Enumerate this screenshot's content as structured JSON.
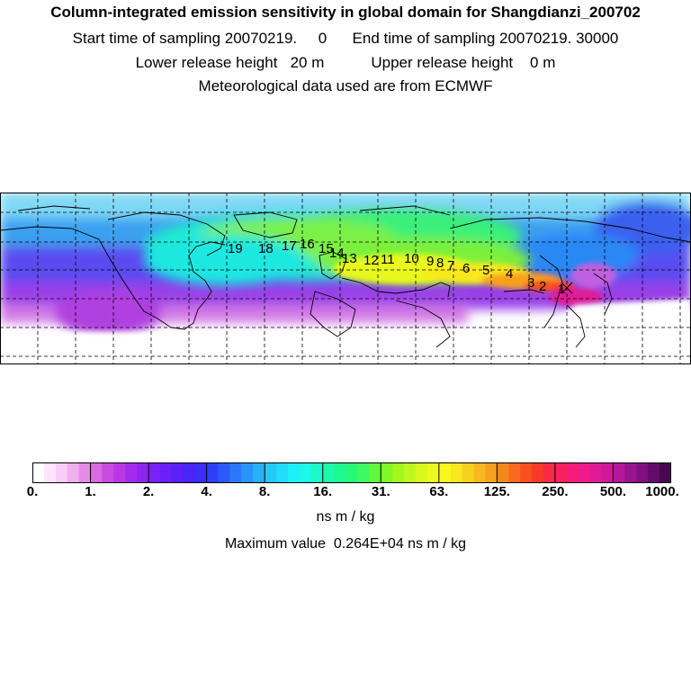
{
  "header": {
    "title": "Column-integrated emission sensitivity in global domain for Shangdianzi_200702",
    "line1": "Start time of sampling 20070219.     0      End time of sampling 20070219. 30000",
    "line2": "Lower release height   20 m           Upper release height    0 m",
    "line3": "Meteorological data used are from ECMWF"
  },
  "trajectory_markers": [
    "1",
    "2",
    "3",
    "4",
    "5",
    "6",
    "7",
    "8",
    "9",
    "10",
    "11",
    "12",
    "13",
    "14",
    "15",
    "16",
    "17",
    "18",
    "19"
  ],
  "colorbar": {
    "tick_labels": [
      "0.",
      "1.",
      "2.",
      "4.",
      "8.",
      "16.",
      "31.",
      "63.",
      "125.",
      "250.",
      "500.",
      "1000."
    ],
    "units": "ns m / kg",
    "colors": [
      "#ffffff",
      "#fde6fd",
      "#f8cdf8",
      "#f0b0f0",
      "#e68ae8",
      "#d96ae0",
      "#c94be0",
      "#b838e6",
      "#a52bea",
      "#8f24f0",
      "#7a21f5",
      "#6a1ff8",
      "#5a20f8",
      "#4a24f8",
      "#3b2ef8",
      "#2f3ef8",
      "#2a5af8",
      "#2a78f8",
      "#2a94f8",
      "#2ab0f8",
      "#26c8f8",
      "#22ddf8",
      "#1ef0f8",
      "#1ef8e6",
      "#1ef8c8",
      "#1ef8a8",
      "#1ef890",
      "#26f878",
      "#40f860",
      "#60f840",
      "#80f828",
      "#a0f81e",
      "#c0f81e",
      "#d8f81e",
      "#ecf81e",
      "#f8f81e",
      "#f8e81e",
      "#f8d01e",
      "#f8b81e",
      "#f8a01e",
      "#f8861e",
      "#f86a1e",
      "#f8501e",
      "#f83a2a",
      "#f82a44",
      "#f82060",
      "#f81c78",
      "#f01a8c",
      "#e01a96",
      "#cc1a9a",
      "#b4189a",
      "#9a1490",
      "#801080",
      "#640c6a",
      "#460850"
    ]
  },
  "max_value_text": "Maximum value  0.264E+04 ns m / kg"
}
